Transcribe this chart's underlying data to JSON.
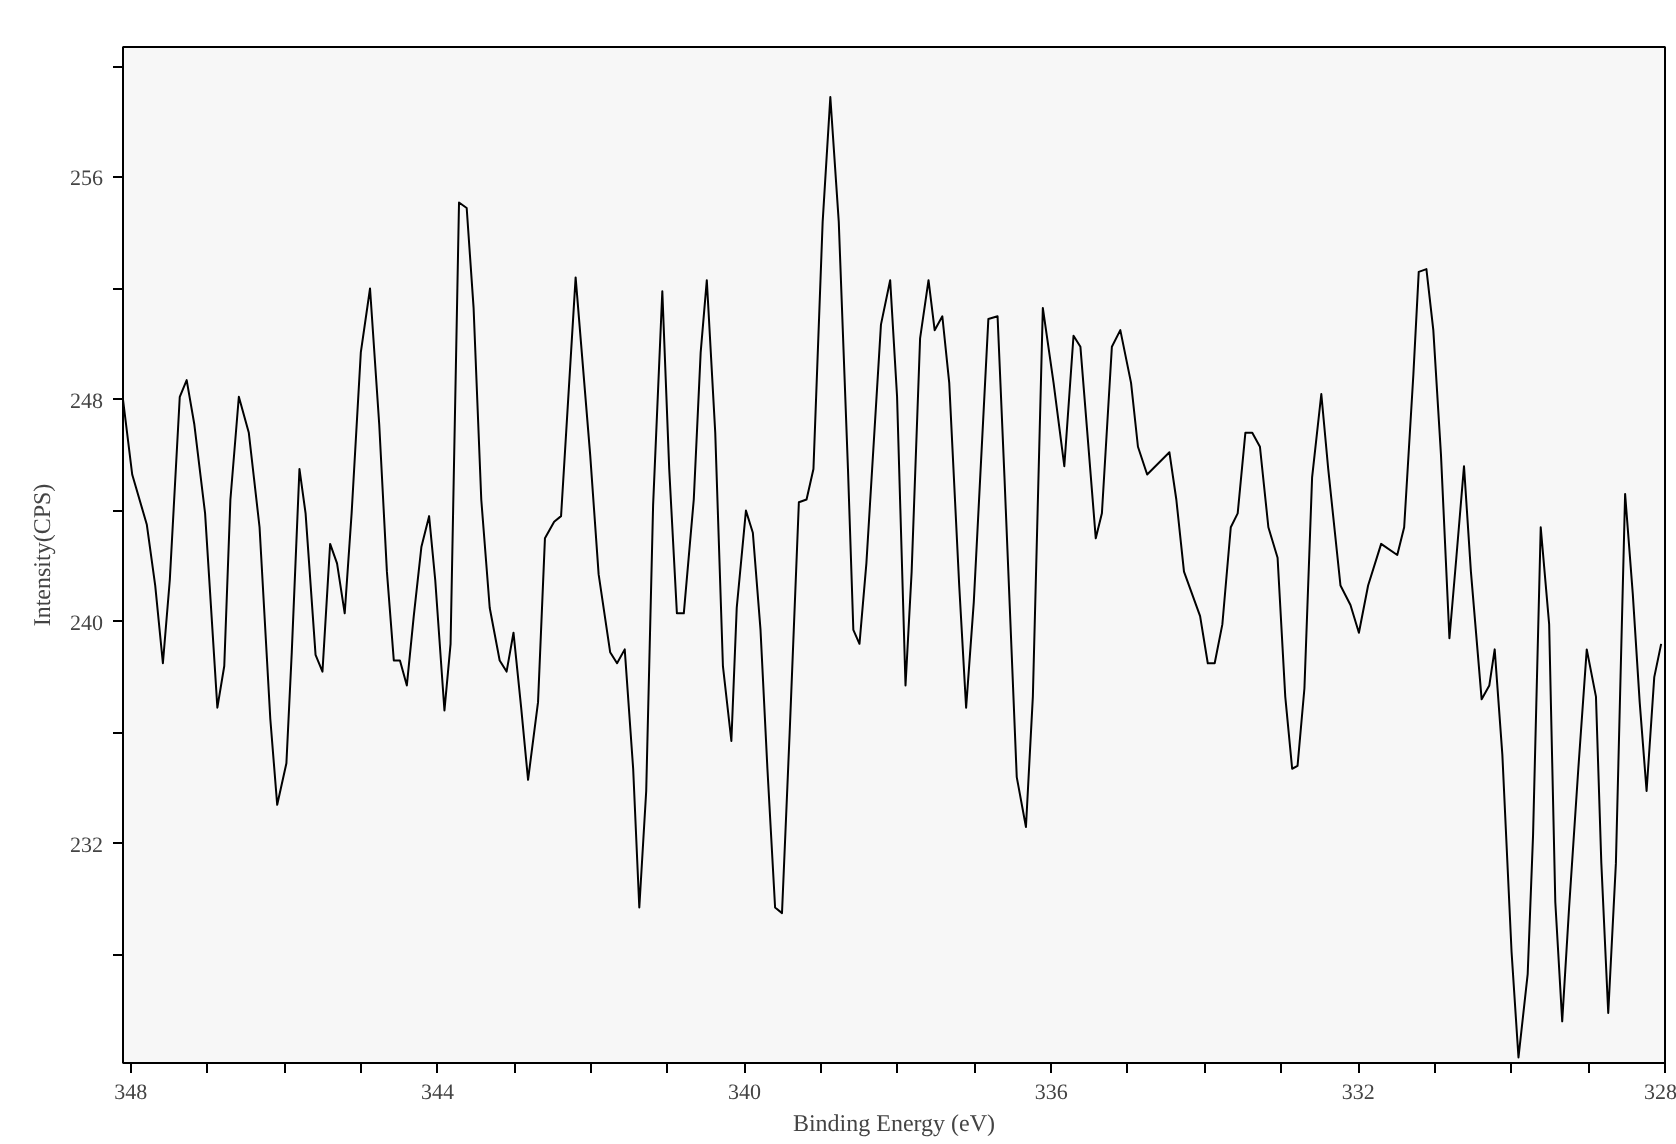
{
  "chart_data": {
    "type": "line",
    "xlabel": "Binding Energy (eV)",
    "ylabel": "Intensity(CPS)",
    "xlim": [
      348.1,
      328
    ],
    "ylim": [
      224.1,
      260.7
    ],
    "xticks": [
      348,
      {
        "value": 347,
        "label": null
      },
      {
        "value": 346,
        "label": null
      },
      {
        "value": 345,
        "label": null
      },
      344,
      {
        "value": 343,
        "label": null
      },
      {
        "value": 342,
        "label": null
      },
      {
        "value": 341,
        "label": null
      },
      340,
      {
        "value": 339,
        "label": null
      },
      {
        "value": 338,
        "label": null
      },
      {
        "value": 337,
        "label": null
      },
      336,
      {
        "value": 335,
        "label": null
      },
      {
        "value": 334,
        "label": null
      },
      {
        "value": 333,
        "label": null
      },
      332,
      {
        "value": 331,
        "label": null
      },
      {
        "value": 330,
        "label": null
      },
      {
        "value": 329,
        "label": null
      },
      328
    ],
    "yticks": [
      {
        "value": 228,
        "label": null
      },
      232,
      {
        "value": 236,
        "label": null
      },
      240,
      {
        "value": 244,
        "label": null
      },
      248,
      {
        "value": 252,
        "label": null
      },
      256,
      {
        "value": 260,
        "label": null
      }
    ],
    "grid": false,
    "line_style": "solid",
    "series": [
      {
        "color": "#000000",
        "x": [
          348.1,
          347.98,
          347.79,
          347.68,
          347.58,
          347.49,
          347.36,
          347.27,
          347.17,
          347.03,
          346.87,
          346.78,
          346.7,
          346.59,
          346.46,
          346.32,
          346.18,
          346.09,
          345.97,
          345.9,
          345.8,
          345.72,
          345.59,
          345.5,
          345.4,
          345.31,
          345.21,
          345.12,
          345.0,
          344.88,
          344.76,
          344.66,
          344.57,
          344.49,
          344.4,
          344.31,
          344.21,
          344.11,
          344.03,
          343.91,
          343.83,
          343.72,
          343.62,
          343.53,
          343.43,
          343.32,
          343.19,
          343.1,
          343.01,
          342.91,
          342.82,
          342.69,
          342.6,
          342.48,
          342.39,
          342.2,
          342.01,
          341.9,
          341.75,
          341.66,
          341.56,
          341.45,
          341.37,
          341.28,
          341.19,
          341.07,
          340.98,
          340.88,
          340.79,
          340.66,
          340.57,
          340.49,
          340.38,
          340.28,
          340.17,
          340.1,
          339.98,
          339.89,
          339.79,
          339.7,
          339.6,
          339.51,
          339.41,
          339.29,
          339.19,
          339.1,
          338.98,
          338.88,
          338.77,
          338.65,
          338.58,
          338.5,
          338.41,
          338.22,
          338.1,
          338.01,
          337.9,
          337.82,
          337.71,
          337.6,
          337.52,
          337.42,
          337.33,
          337.2,
          337.11,
          337.01,
          336.82,
          336.7,
          336.61,
          336.45,
          336.33,
          336.24,
          336.11,
          335.97,
          335.83,
          335.71,
          335.62,
          335.53,
          335.42,
          335.34,
          335.21,
          335.1,
          334.96,
          334.87,
          334.75,
          334.46,
          334.37,
          334.27,
          334.06,
          333.96,
          333.87,
          333.77,
          333.66,
          333.57,
          333.47,
          333.38,
          333.28,
          333.17,
          333.05,
          332.95,
          332.86,
          332.79,
          332.7,
          332.6,
          332.48,
          332.39,
          332.23,
          332.1,
          331.99,
          331.87,
          331.7,
          331.49,
          331.4,
          331.28,
          331.21,
          331.11,
          331.02,
          330.92,
          330.81,
          330.72,
          330.62,
          330.53,
          330.39,
          330.29,
          330.22,
          330.12,
          330.0,
          329.91,
          329.79,
          329.72,
          329.62,
          329.51,
          329.43,
          329.34,
          329.25,
          329.13,
          329.02,
          328.9,
          328.83,
          328.74,
          328.64,
          328.52,
          328.42,
          328.33,
          328.24,
          328.14,
          328.05
        ],
        "values": [
          248.0,
          245.3,
          243.5,
          241.3,
          238.5,
          241.5,
          248.1,
          248.7,
          247.1,
          243.9,
          236.9,
          238.4,
          244.4,
          248.1,
          246.8,
          243.4,
          236.5,
          233.4,
          234.9,
          238.9,
          245.5,
          243.9,
          238.8,
          238.2,
          242.8,
          242.1,
          240.3,
          243.9,
          249.7,
          252.0,
          247.1,
          241.8,
          238.6,
          238.6,
          237.7,
          240.2,
          242.7,
          243.8,
          241.5,
          236.8,
          239.2,
          255.1,
          254.9,
          251.3,
          244.4,
          240.5,
          238.6,
          238.2,
          239.6,
          236.9,
          234.3,
          237.1,
          243.0,
          243.6,
          243.8,
          252.4,
          246.0,
          241.7,
          238.9,
          238.5,
          239.0,
          234.7,
          229.7,
          233.9,
          244.2,
          251.9,
          245.5,
          240.3,
          240.3,
          244.4,
          249.7,
          252.3,
          246.8,
          238.4,
          235.7,
          240.5,
          244.0,
          243.2,
          239.7,
          234.7,
          229.7,
          229.5,
          236.0,
          244.3,
          244.4,
          245.5,
          254.4,
          258.9,
          254.4,
          245.5,
          239.7,
          239.2,
          242.1,
          250.7,
          252.3,
          248.1,
          237.7,
          241.8,
          250.2,
          252.3,
          250.5,
          251.0,
          248.6,
          241.3,
          236.9,
          240.7,
          250.9,
          251.0,
          245.2,
          234.4,
          232.6,
          237.3,
          251.3,
          248.6,
          245.6,
          250.3,
          249.9,
          246.8,
          243.0,
          243.9,
          249.9,
          250.5,
          248.6,
          246.3,
          245.3,
          246.1,
          244.4,
          241.8,
          240.2,
          238.5,
          238.5,
          239.9,
          243.4,
          243.9,
          246.8,
          246.8,
          246.3,
          243.4,
          242.3,
          237.3,
          234.7,
          234.8,
          237.6,
          245.2,
          248.2,
          245.5,
          241.3,
          240.6,
          239.6,
          241.3,
          242.8,
          242.4,
          243.4,
          248.9,
          252.6,
          252.7,
          250.5,
          246.0,
          239.4,
          242.3,
          245.6,
          241.8,
          237.2,
          237.7,
          239.0,
          235.2,
          228.1,
          224.3,
          227.3,
          232.3,
          243.4,
          239.9,
          229.9,
          225.6,
          229.7,
          234.7,
          239.0,
          237.3,
          231.3,
          225.9,
          231.3,
          244.6,
          241.0,
          237.1,
          233.9,
          238.0,
          239.2
        ]
      }
    ]
  }
}
